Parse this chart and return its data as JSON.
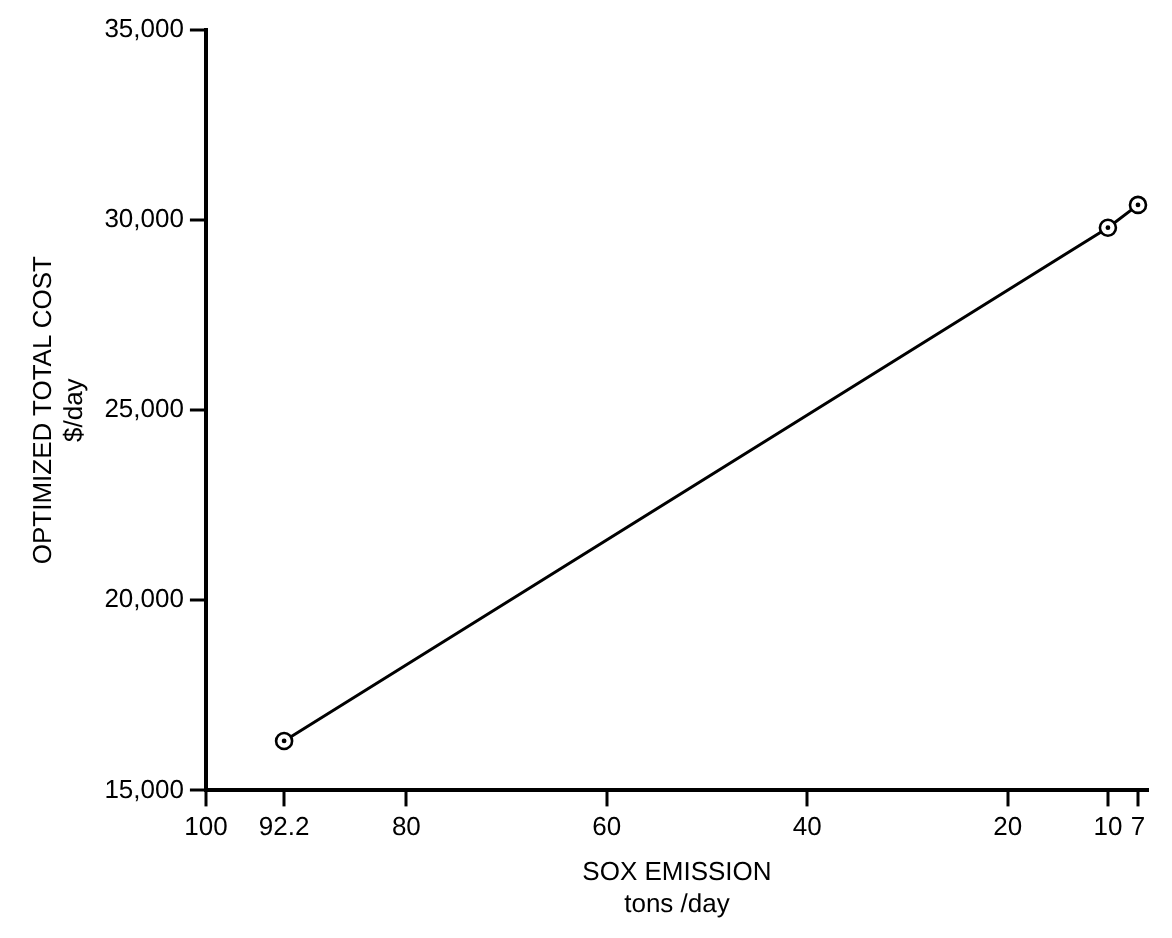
{
  "chart_data": {
    "type": "line",
    "xlabel": "SOX EMISSION\ntons /day",
    "ylabel": "OPTIMIZED TOTAL COST\n$/day",
    "x": [
      92.2,
      10,
      7
    ],
    "series": [
      {
        "color": "#000000",
        "values": [
          16300,
          29800,
          30400
        ]
      }
    ],
    "xlim": [
      100,
      6
    ],
    "xticks": [
      100,
      92.2,
      80,
      60,
      40,
      20,
      10,
      7
    ],
    "ylim": [
      15000,
      35000
    ],
    "yticks": [
      {
        "value": 15000,
        "label": "15,000"
      },
      {
        "value": 20000,
        "label": "20,000"
      },
      {
        "value": 25000,
        "label": "25,000"
      },
      {
        "value": 30000,
        "label": "30,000"
      },
      {
        "value": 35000,
        "label": "35,000"
      }
    ],
    "grid": false,
    "legend": false,
    "marker": "circle",
    "line_style": "solid"
  }
}
